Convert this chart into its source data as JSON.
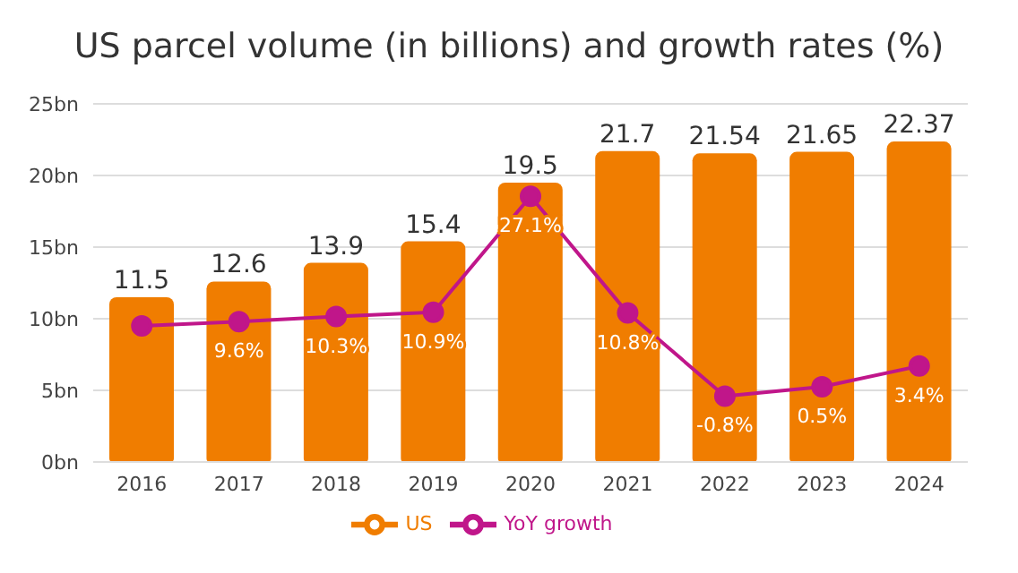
{
  "chart_data": {
    "type": "bar",
    "title": "US parcel volume (in billions) and growth rates (%)",
    "categories": [
      "2016",
      "2017",
      "2018",
      "2019",
      "2020",
      "2021",
      "2022",
      "2023",
      "2024"
    ],
    "series": [
      {
        "name": "US",
        "color": "#f07d00",
        "values": [
          11.5,
          12.6,
          13.9,
          15.4,
          19.5,
          21.7,
          21.54,
          21.65,
          22.37
        ],
        "value_labels": [
          "11.5",
          "12.6",
          "13.9",
          "15.4",
          "19.5",
          "21.7",
          "21.54",
          "21.65",
          "22.37"
        ]
      },
      {
        "name": "YoY growth",
        "type": "line",
        "axis": "y2",
        "color": "#c0168a",
        "marker": "circle",
        "values": [
          9.0,
          9.6,
          10.3,
          10.9,
          27.1,
          10.8,
          -0.8,
          0.5,
          3.4
        ],
        "value_labels": [
          null,
          "9.6%",
          "10.3%",
          "10.9%",
          "27.1%",
          "10.8%",
          "-0.8%",
          "0.5%",
          "3.4%"
        ]
      }
    ],
    "ylim": [
      0,
      25
    ],
    "yticks": [
      {
        "value": 0,
        "label": "0bn"
      },
      {
        "value": 5,
        "label": "5bn"
      },
      {
        "value": 10,
        "label": "10bn"
      },
      {
        "value": 15,
        "label": "15bn"
      },
      {
        "value": 20,
        "label": "20bn"
      },
      {
        "value": 25,
        "label": "25bn"
      }
    ],
    "y2lim": [
      -10,
      40
    ],
    "grid": "y",
    "legend": "bottom"
  }
}
